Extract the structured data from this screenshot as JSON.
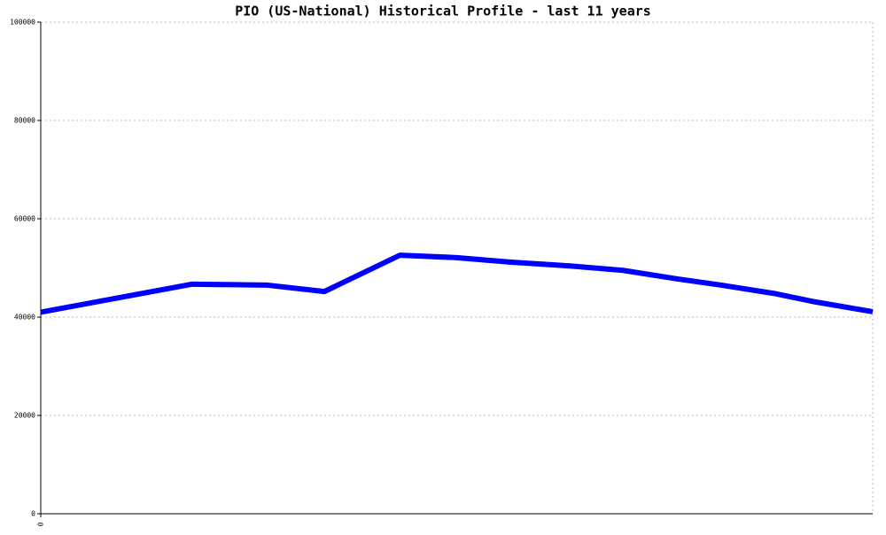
{
  "chart_data": {
    "type": "line",
    "title": "PIO (US-National) Historical Profile - last 11 years",
    "x": [
      0,
      2,
      3,
      3.75,
      4.75,
      5.5,
      6.2,
      7,
      7.7,
      8.4,
      9,
      9.7,
      10.2,
      11
    ],
    "series": [
      {
        "color": "#0000ff",
        "values": [
          41000,
          46700,
          46500,
          45200,
          52600,
          52100,
          51200,
          50400,
          49500,
          47800,
          46500,
          44800,
          43200,
          41100
        ]
      }
    ],
    "xlim": [
      0,
      11
    ],
    "xticks": [
      0
    ],
    "ylim": [
      0,
      100000
    ],
    "yticks": [
      0,
      20000,
      40000,
      60000,
      80000,
      100000
    ],
    "grid": true
  }
}
